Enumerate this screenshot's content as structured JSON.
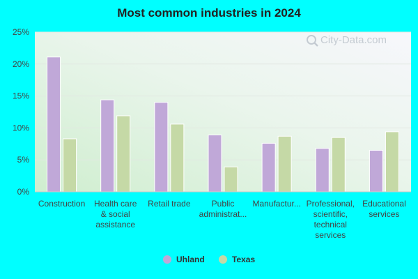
{
  "chart_data": {
    "type": "bar",
    "title": "Most common industries in 2024",
    "categories": [
      [
        "Construction"
      ],
      [
        "Health care",
        "& social",
        "assistance"
      ],
      [
        "Retail trade"
      ],
      [
        "Public",
        "administrat..."
      ],
      [
        "Manufactur..."
      ],
      [
        "Professional,",
        "scientific,",
        "technical",
        "services"
      ],
      [
        "Educational",
        "services"
      ]
    ],
    "series": [
      {
        "name": "Uhland",
        "color": "#c0a8d8",
        "values": [
          21.1,
          14.4,
          14.0,
          8.9,
          7.6,
          6.8,
          6.5
        ]
      },
      {
        "name": "Texas",
        "color": "#c5d9a6",
        "values": [
          8.3,
          11.9,
          10.6,
          3.9,
          8.7,
          8.5,
          9.4
        ]
      }
    ],
    "ylim": [
      0,
      25
    ],
    "yticks": [
      0,
      5,
      10,
      15,
      20,
      25
    ],
    "ytick_labels": [
      "0%",
      "5%",
      "10%",
      "15%",
      "20%",
      "25%"
    ],
    "grid": true,
    "legend": "bottom-center"
  },
  "watermark": {
    "text": "City-Data.com",
    "icon": "magnifier-icon"
  }
}
